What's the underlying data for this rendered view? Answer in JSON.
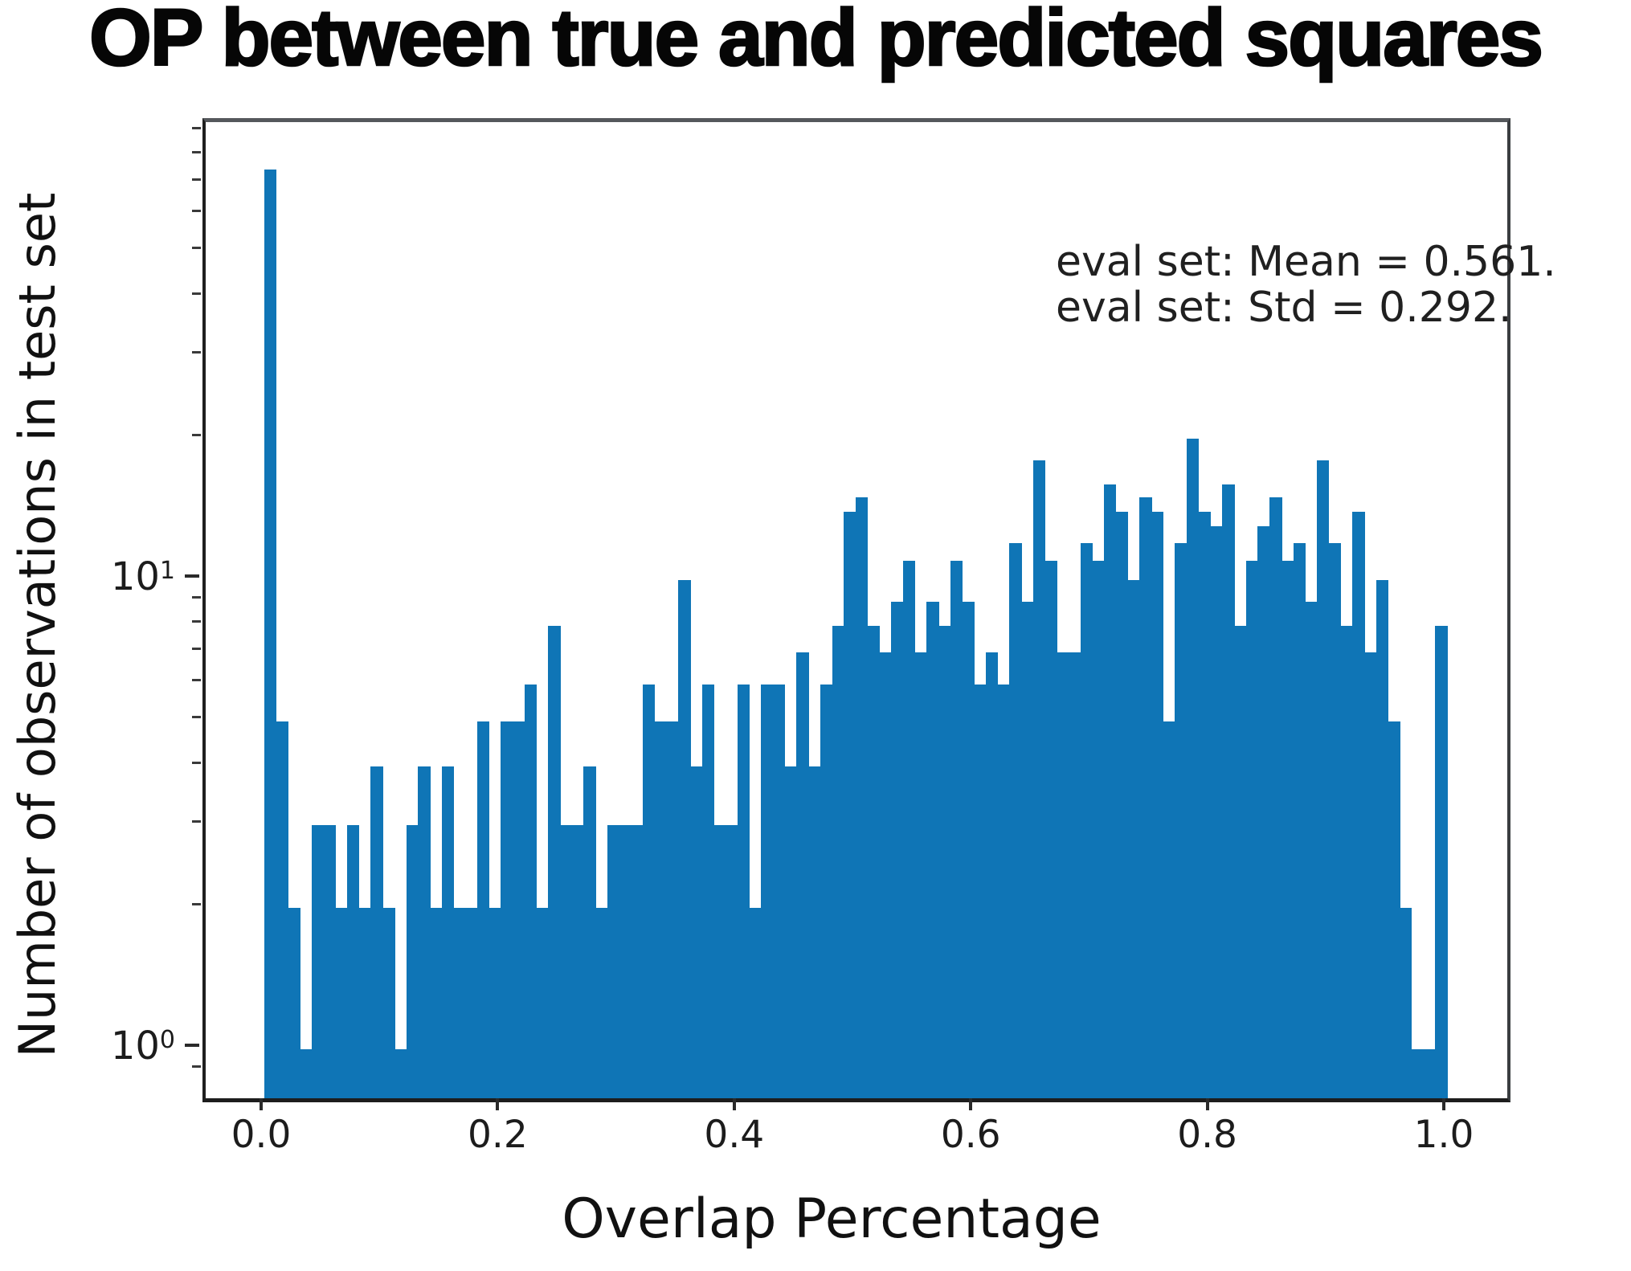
{
  "title": "OP between true and predicted squares",
  "xlabel": "Overlap Percentage",
  "ylabel": "Number of observations in test set",
  "annotation": {
    "line1": "eval set: Mean = 0.561.",
    "line2": "eval set: Std = 0.292."
  },
  "colors": {
    "bar": "#0f75b6",
    "axis_text": "#1c1c1c",
    "spine": "#1f1f1f"
  },
  "axes": {
    "x_tick_labels": [
      "0.0",
      "0.2",
      "0.4",
      "0.6",
      "0.8",
      "1.0"
    ],
    "x_tick_values": [
      0.0,
      0.2,
      0.4,
      0.6,
      0.8,
      1.0
    ],
    "y_major_ticks": [
      {
        "base": "10",
        "exp": "1",
        "value": 10
      },
      {
        "base": "10",
        "exp": "0",
        "value": 1
      }
    ],
    "y_scale": "log"
  },
  "chart_data": {
    "type": "bar",
    "subtype": "histogram",
    "title": "OP between true and predicted squares",
    "xlabel": "Overlap Percentage",
    "ylabel": "Number of observations in test set",
    "yscale": "log",
    "xlim": [
      -0.05,
      1.05
    ],
    "ylim": [
      0.79,
      95
    ],
    "grid": false,
    "legend": "none",
    "bin_start": 0.0,
    "bin_width": 0.01,
    "counts": [
      75,
      5,
      2,
      1,
      3,
      3,
      2,
      3,
      2,
      4,
      2,
      1,
      3,
      4,
      2,
      4,
      2,
      2,
      5,
      2,
      5,
      5,
      6,
      2,
      8,
      3,
      3,
      4,
      2,
      3,
      3,
      3,
      6,
      5,
      5,
      10,
      4,
      6,
      3,
      3,
      6,
      2,
      6,
      6,
      4,
      7,
      4,
      6,
      8,
      14,
      15,
      8,
      7,
      9,
      11,
      7,
      9,
      8,
      11,
      9,
      6,
      7,
      6,
      12,
      9,
      18,
      11,
      7,
      7,
      12,
      11,
      16,
      14,
      10,
      15,
      14,
      5,
      12,
      20,
      14,
      13,
      16,
      8,
      11,
      13,
      15,
      11,
      12,
      9,
      18,
      12,
      8,
      14,
      7,
      10,
      5,
      2,
      1,
      1,
      8
    ],
    "stats": {
      "mean": 0.561,
      "std": 0.292
    }
  }
}
